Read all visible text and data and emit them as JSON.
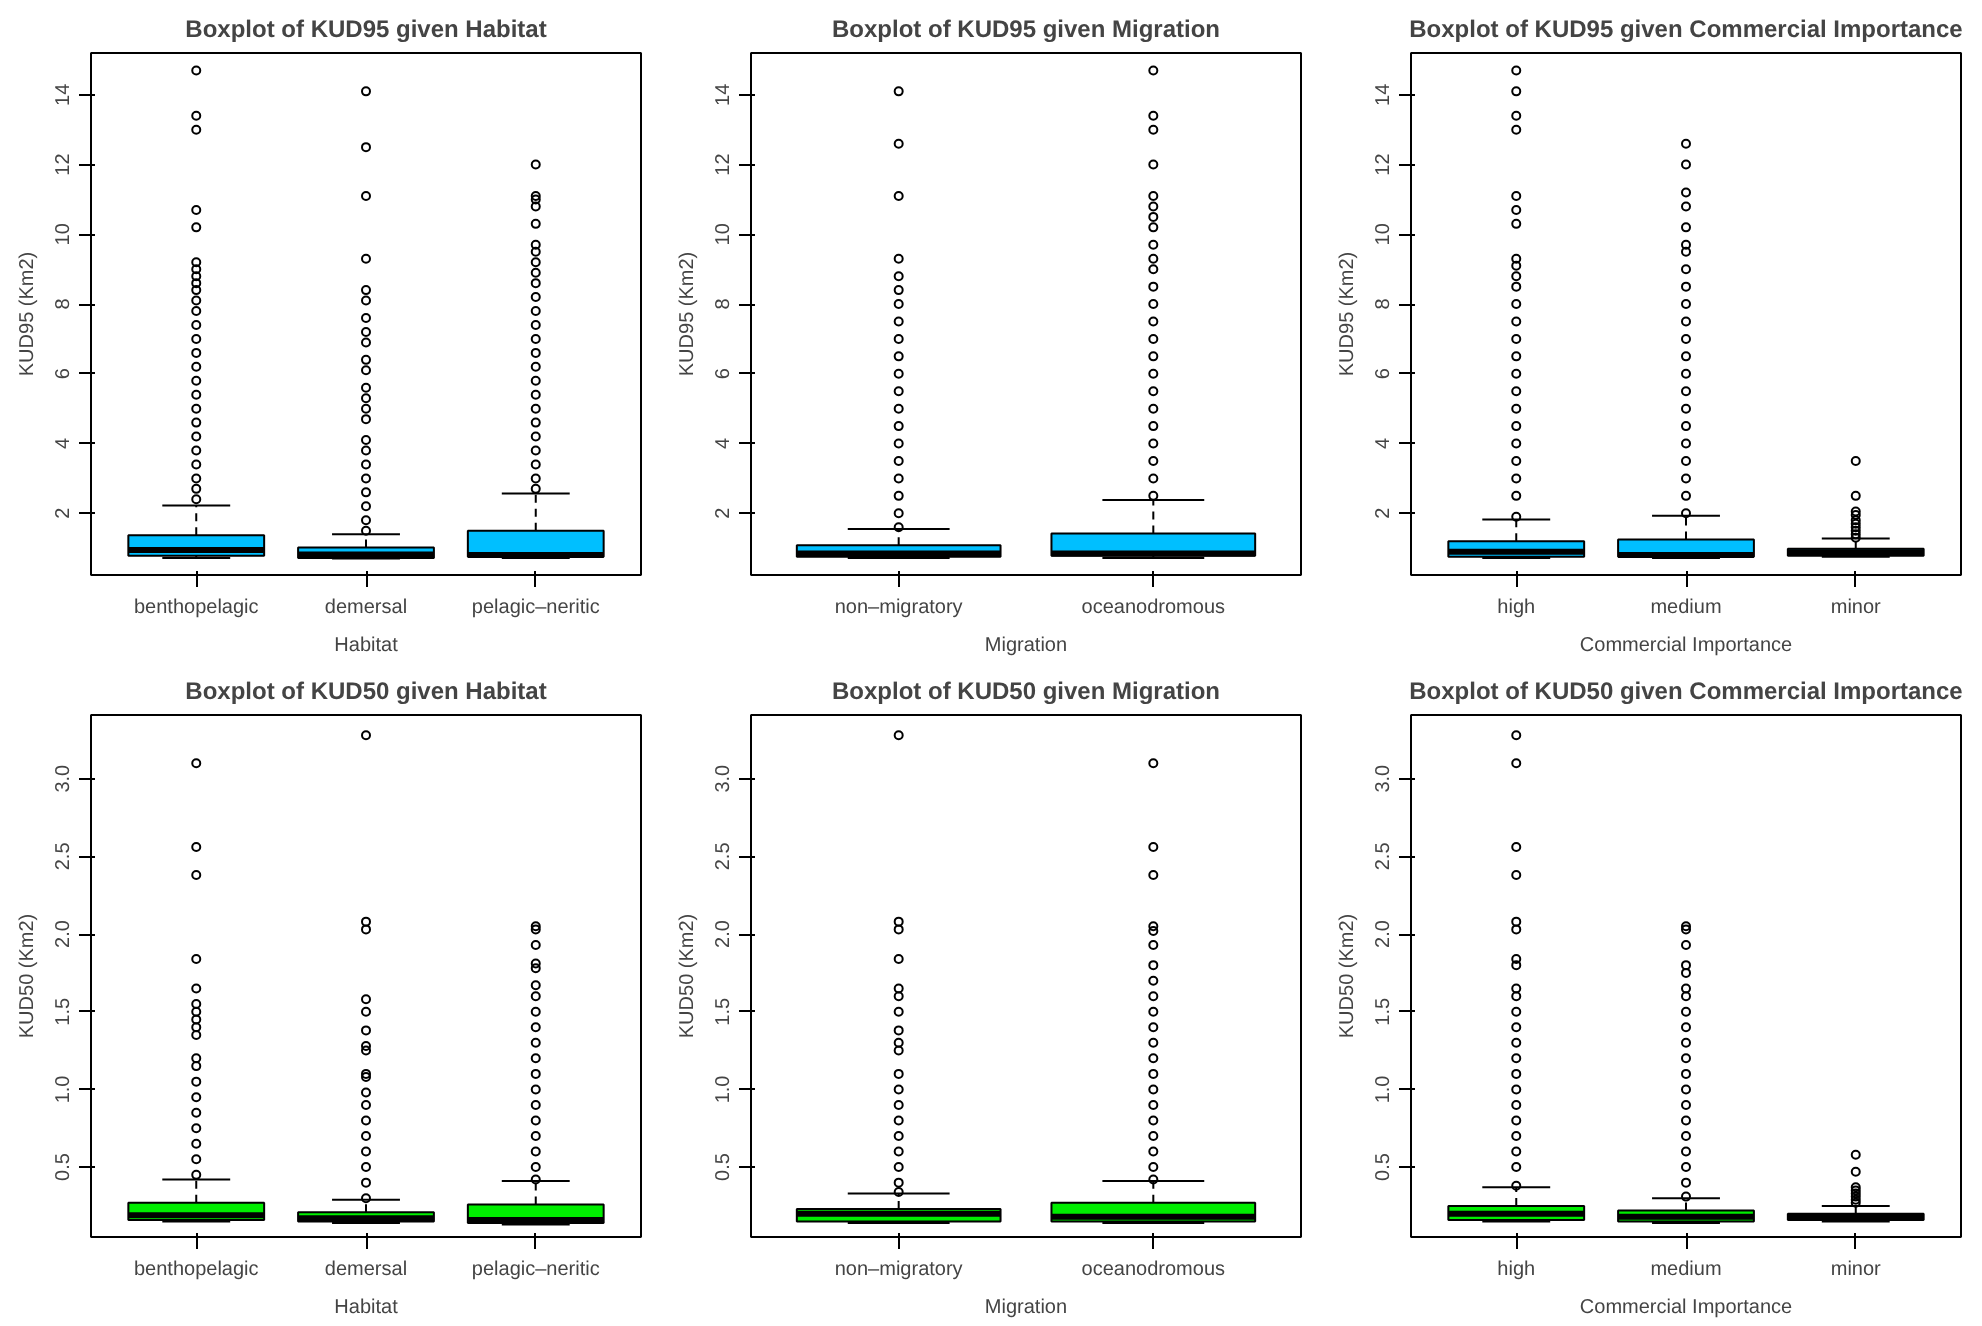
{
  "chart_data": [
    {
      "type": "box",
      "title": "Boxplot of KUD95 given Habitat",
      "xlabel": "Habitat",
      "ylabel": "KUD95 (Km2)",
      "categories": [
        "benthopelagic",
        "demersal",
        "pelagic–neritic"
      ],
      "color": "#00bfff",
      "ylim": [
        0.23,
        15.2
      ],
      "yticks": [
        2,
        4,
        6,
        8,
        10,
        12,
        14
      ],
      "grid": false,
      "boxes": [
        {
          "low": 0.72,
          "q1": 0.78,
          "median": 0.95,
          "q3": 1.37,
          "high": 2.22,
          "outliers": [
            14.7,
            13.4,
            13.0,
            10.7,
            10.2,
            9.2,
            9.0,
            8.8,
            8.6,
            8.4,
            8.1,
            7.8,
            7.4,
            7.0,
            6.6,
            6.2,
            5.8,
            5.4,
            5.0,
            4.6,
            4.2,
            3.8,
            3.4,
            3.0,
            2.7,
            2.4
          ]
        },
        {
          "low": 0.7,
          "q1": 0.72,
          "median": 0.82,
          "q3": 1.02,
          "high": 1.4,
          "outliers": [
            14.1,
            12.5,
            11.1,
            9.3,
            8.4,
            8.1,
            7.6,
            7.2,
            6.9,
            6.4,
            6.1,
            5.6,
            5.3,
            5.0,
            4.7,
            4.1,
            3.8,
            3.4,
            3.0,
            2.6,
            2.2,
            1.8,
            1.5
          ]
        },
        {
          "low": 0.72,
          "q1": 0.75,
          "median": 0.8,
          "q3": 1.5,
          "high": 2.57,
          "outliers": [
            12.0,
            11.1,
            11.0,
            10.8,
            10.3,
            9.7,
            9.5,
            9.2,
            8.9,
            8.6,
            8.2,
            7.8,
            7.4,
            7.0,
            6.6,
            6.2,
            5.8,
            5.4,
            5.0,
            4.6,
            4.2,
            3.8,
            3.4,
            3.0,
            2.7
          ]
        }
      ]
    },
    {
      "type": "box",
      "title": "Boxplot of KUD95 given Migration",
      "xlabel": "Migration",
      "ylabel": "KUD95 (Km2)",
      "categories": [
        "non–migratory",
        "oceanodromous"
      ],
      "color": "#00bfff",
      "ylim": [
        0.23,
        15.2
      ],
      "yticks": [
        2,
        4,
        6,
        8,
        10,
        12,
        14
      ],
      "grid": false,
      "boxes": [
        {
          "low": 0.72,
          "q1": 0.75,
          "median": 0.85,
          "q3": 1.08,
          "high": 1.55,
          "outliers": [
            14.1,
            12.6,
            11.1,
            9.3,
            8.8,
            8.4,
            8.0,
            7.5,
            7.0,
            6.5,
            6.0,
            5.5,
            5.0,
            4.5,
            4.0,
            3.5,
            3.0,
            2.5,
            2.0,
            1.6
          ]
        },
        {
          "low": 0.72,
          "q1": 0.78,
          "median": 0.85,
          "q3": 1.42,
          "high": 2.38,
          "outliers": [
            14.7,
            13.4,
            13.0,
            12.0,
            11.1,
            10.8,
            10.5,
            10.2,
            9.7,
            9.3,
            9.0,
            8.5,
            8.0,
            7.5,
            7.0,
            6.5,
            6.0,
            5.5,
            5.0,
            4.5,
            4.0,
            3.5,
            3.0,
            2.5
          ]
        }
      ]
    },
    {
      "type": "box",
      "title": "Boxplot of KUD95 given Commercial Importance",
      "xlabel": "Commercial Importance",
      "ylabel": "KUD95 (Km2)",
      "categories": [
        "high",
        "medium",
        "minor"
      ],
      "color": "#00bfff",
      "ylim": [
        0.23,
        15.2
      ],
      "yticks": [
        2,
        4,
        6,
        8,
        10,
        12,
        14
      ],
      "grid": false,
      "boxes": [
        {
          "low": 0.72,
          "q1": 0.75,
          "median": 0.9,
          "q3": 1.2,
          "high": 1.82,
          "outliers": [
            14.7,
            14.1,
            13.4,
            13.0,
            11.1,
            10.7,
            10.3,
            9.3,
            9.1,
            8.8,
            8.5,
            8.0,
            7.5,
            7.0,
            6.5,
            6.0,
            5.5,
            5.0,
            4.5,
            4.0,
            3.5,
            3.0,
            2.5,
            1.9
          ]
        },
        {
          "low": 0.72,
          "q1": 0.75,
          "median": 0.8,
          "q3": 1.25,
          "high": 1.93,
          "outliers": [
            12.6,
            12.0,
            11.2,
            10.8,
            10.2,
            9.7,
            9.5,
            9.0,
            8.5,
            8.0,
            7.5,
            7.0,
            6.5,
            6.0,
            5.5,
            5.0,
            4.5,
            4.0,
            3.5,
            3.0,
            2.5,
            2.0
          ]
        },
        {
          "low": 0.75,
          "q1": 0.78,
          "median": 0.88,
          "q3": 0.98,
          "high": 1.28,
          "outliers": [
            3.5,
            2.5,
            2.05,
            1.95,
            1.8,
            1.7,
            1.6,
            1.5,
            1.4,
            1.3
          ]
        }
      ]
    },
    {
      "type": "box",
      "title": "Boxplot of KUD50 given Habitat",
      "xlabel": "Habitat",
      "ylabel": "KUD50 (Km2)",
      "categories": [
        "benthopelagic",
        "demersal",
        "pelagic–neritic"
      ],
      "color": "#00ee00",
      "ylim": [
        0.05,
        3.41
      ],
      "yticks": [
        {
          "value": 0.5,
          "label": "0.5"
        },
        {
          "value": 1,
          "label": "1.0"
        },
        {
          "value": 1.5,
          "label": "1.5"
        },
        {
          "value": 2,
          "label": "2.0"
        },
        {
          "value": 2.5,
          "label": "2.5"
        },
        {
          "value": 3,
          "label": "3.0"
        }
      ],
      "grid": false,
      "boxes": [
        {
          "low": 0.15,
          "q1": 0.16,
          "median": 0.19,
          "q3": 0.27,
          "high": 0.42,
          "outliers": [
            3.1,
            2.56,
            2.38,
            1.84,
            1.65,
            1.55,
            1.5,
            1.45,
            1.4,
            1.35,
            1.2,
            1.15,
            1.05,
            0.95,
            0.85,
            0.75,
            0.65,
            0.55,
            0.45
          ]
        },
        {
          "low": 0.14,
          "q1": 0.15,
          "median": 0.17,
          "q3": 0.21,
          "high": 0.29,
          "outliers": [
            3.28,
            2.08,
            2.03,
            1.58,
            1.5,
            1.38,
            1.28,
            1.25,
            1.1,
            1.08,
            0.98,
            0.9,
            0.8,
            0.7,
            0.6,
            0.5,
            0.4,
            0.3
          ]
        },
        {
          "low": 0.13,
          "q1": 0.14,
          "median": 0.16,
          "q3": 0.26,
          "high": 0.41,
          "outliers": [
            2.05,
            2.03,
            1.93,
            1.81,
            1.78,
            1.67,
            1.6,
            1.5,
            1.4,
            1.3,
            1.2,
            1.1,
            1.0,
            0.9,
            0.8,
            0.7,
            0.6,
            0.5,
            0.42
          ]
        }
      ]
    },
    {
      "type": "box",
      "title": "Boxplot of KUD50 given Migration",
      "xlabel": "Migration",
      "ylabel": "KUD50 (Km2)",
      "categories": [
        "non–migratory",
        "oceanodromous"
      ],
      "color": "#00ee00",
      "ylim": [
        0.05,
        3.41
      ],
      "yticks": [
        {
          "value": 0.5,
          "label": "0.5"
        },
        {
          "value": 1,
          "label": "1.0"
        },
        {
          "value": 1.5,
          "label": "1.5"
        },
        {
          "value": 2,
          "label": "2.0"
        },
        {
          "value": 2.5,
          "label": "2.5"
        },
        {
          "value": 3,
          "label": "3.0"
        }
      ],
      "grid": false,
      "boxes": [
        {
          "low": 0.14,
          "q1": 0.15,
          "median": 0.2,
          "q3": 0.23,
          "high": 0.33,
          "outliers": [
            3.28,
            2.08,
            2.03,
            1.84,
            1.65,
            1.6,
            1.5,
            1.38,
            1.3,
            1.25,
            1.1,
            1.0,
            0.9,
            0.8,
            0.7,
            0.6,
            0.5,
            0.4,
            0.34
          ]
        },
        {
          "low": 0.14,
          "q1": 0.15,
          "median": 0.18,
          "q3": 0.27,
          "high": 0.41,
          "outliers": [
            3.1,
            2.56,
            2.38,
            2.05,
            2.02,
            1.93,
            1.8,
            1.7,
            1.6,
            1.5,
            1.4,
            1.3,
            1.2,
            1.1,
            1.0,
            0.9,
            0.8,
            0.7,
            0.6,
            0.5,
            0.42
          ]
        }
      ]
    },
    {
      "type": "box",
      "title": "Boxplot of KUD50 given Commercial Importance",
      "xlabel": "Commercial Importance",
      "ylabel": "KUD50 (Km2)",
      "categories": [
        "high",
        "medium",
        "minor"
      ],
      "color": "#00ee00",
      "ylim": [
        0.05,
        3.41
      ],
      "yticks": [
        {
          "value": 0.5,
          "label": "0.5"
        },
        {
          "value": 1,
          "label": "1.0"
        },
        {
          "value": 1.5,
          "label": "1.5"
        },
        {
          "value": 2,
          "label": "2.0"
        },
        {
          "value": 2.5,
          "label": "2.5"
        },
        {
          "value": 3,
          "label": "3.0"
        }
      ],
      "grid": false,
      "boxes": [
        {
          "low": 0.15,
          "q1": 0.16,
          "median": 0.2,
          "q3": 0.25,
          "high": 0.37,
          "outliers": [
            3.28,
            3.1,
            2.56,
            2.38,
            2.08,
            2.03,
            1.84,
            1.8,
            1.65,
            1.6,
            1.5,
            1.4,
            1.3,
            1.2,
            1.1,
            1.0,
            0.9,
            0.8,
            0.7,
            0.6,
            0.5,
            0.38
          ]
        },
        {
          "low": 0.14,
          "q1": 0.15,
          "median": 0.18,
          "q3": 0.22,
          "high": 0.3,
          "outliers": [
            2.05,
            2.03,
            1.93,
            1.8,
            1.75,
            1.65,
            1.6,
            1.5,
            1.4,
            1.3,
            1.2,
            1.1,
            1.0,
            0.9,
            0.8,
            0.7,
            0.6,
            0.5,
            0.4,
            0.31
          ]
        },
        {
          "low": 0.15,
          "q1": 0.16,
          "median": 0.18,
          "q3": 0.2,
          "high": 0.25,
          "outliers": [
            0.58,
            0.47,
            0.37,
            0.35,
            0.33,
            0.31,
            0.29,
            0.27
          ]
        }
      ]
    }
  ]
}
